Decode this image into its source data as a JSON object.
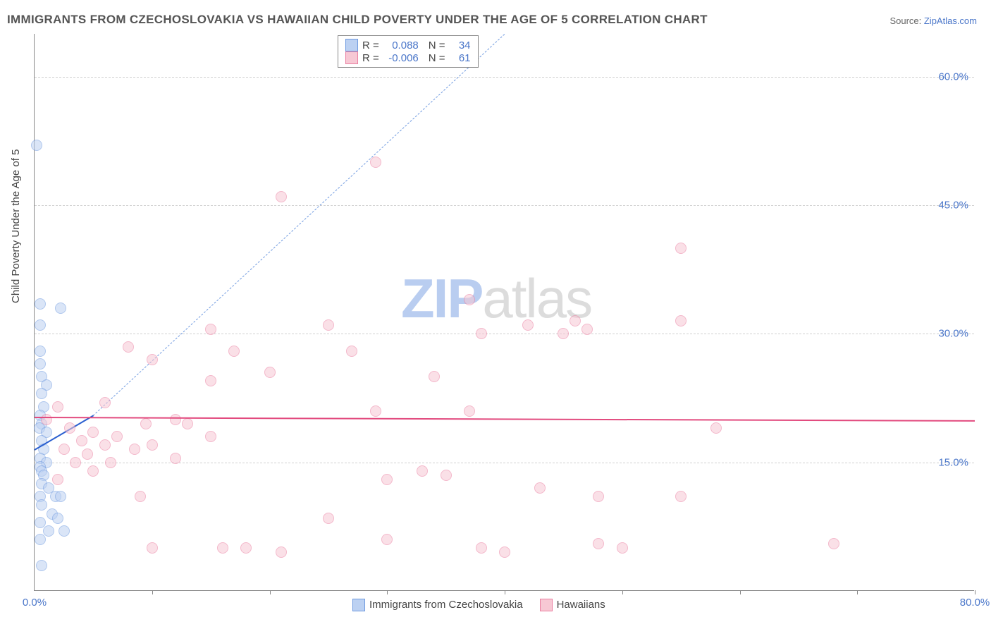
{
  "title": "IMMIGRANTS FROM CZECHOSLOVAKIA VS HAWAIIAN CHILD POVERTY UNDER THE AGE OF 5 CORRELATION CHART",
  "source_label": "Source: ",
  "source_link": "ZipAtlas.com",
  "ylabel": "Child Poverty Under the Age of 5",
  "chart": {
    "type": "scatter",
    "xlim": [
      0,
      80
    ],
    "ylim": [
      0,
      65
    ],
    "xticks": [
      0,
      10,
      20,
      30,
      40,
      50,
      60,
      70,
      80
    ],
    "xtick_labels_shown": {
      "0": "0.0%",
      "80": "80.0%"
    },
    "yticks": [
      15,
      30,
      45,
      60
    ],
    "ytick_labels": [
      "15.0%",
      "30.0%",
      "45.0%",
      "60.0%"
    ],
    "grid_color": "#d0d0d0",
    "axis_color": "#888888",
    "background_color": "#ffffff",
    "marker_radius": 8,
    "marker_stroke_width": 1.5,
    "series": [
      {
        "name": "Immigrants from Czechoslovakia",
        "fill": "#bcd1f2",
        "stroke": "#6f9ae0",
        "fill_opacity": 0.55,
        "R": "0.088",
        "N": "34",
        "trend": {
          "x1": 0,
          "y1": 16.5,
          "x2": 5,
          "y2": 20.5,
          "color": "#2a5fd0",
          "width": 2.5,
          "dash": false
        },
        "trend_ext": {
          "x1": 5,
          "y1": 20.5,
          "x2": 40,
          "y2": 65,
          "color": "#6f9ae0",
          "width": 1.2,
          "dash": true
        },
        "points": [
          [
            0.2,
            52
          ],
          [
            0.5,
            33.5
          ],
          [
            2.2,
            33
          ],
          [
            0.5,
            31
          ],
          [
            0.5,
            28
          ],
          [
            0.5,
            26.5
          ],
          [
            0.6,
            25
          ],
          [
            1.0,
            24
          ],
          [
            0.6,
            23
          ],
          [
            0.8,
            21.5
          ],
          [
            0.5,
            20.5
          ],
          [
            0.6,
            19.5
          ],
          [
            0.4,
            19
          ],
          [
            1.0,
            18.5
          ],
          [
            0.6,
            17.5
          ],
          [
            0.8,
            16.5
          ],
          [
            0.5,
            15.5
          ],
          [
            1.0,
            15
          ],
          [
            0.5,
            14.5
          ],
          [
            0.6,
            14
          ],
          [
            0.8,
            13.5
          ],
          [
            0.6,
            12.5
          ],
          [
            1.2,
            12
          ],
          [
            0.5,
            11
          ],
          [
            1.8,
            11
          ],
          [
            2.2,
            11
          ],
          [
            0.6,
            10
          ],
          [
            1.5,
            9
          ],
          [
            0.5,
            8
          ],
          [
            2.0,
            8.5
          ],
          [
            1.2,
            7
          ],
          [
            2.5,
            7
          ],
          [
            0.5,
            6
          ],
          [
            0.6,
            3
          ]
        ]
      },
      {
        "name": "Hawaiians",
        "fill": "#f7c8d4",
        "stroke": "#eb7fa1",
        "fill_opacity": 0.55,
        "R": "-0.006",
        "N": "61",
        "trend": {
          "x1": 0,
          "y1": 20.3,
          "x2": 80,
          "y2": 19.9,
          "color": "#e24a7e",
          "width": 2.5,
          "dash": false
        },
        "points": [
          [
            29,
            50
          ],
          [
            21,
            46
          ],
          [
            55,
            40
          ],
          [
            37,
            34
          ],
          [
            15,
            30.5
          ],
          [
            25,
            31
          ],
          [
            46,
            31.5
          ],
          [
            55,
            31.5
          ],
          [
            42,
            31
          ],
          [
            38,
            30
          ],
          [
            45,
            30
          ],
          [
            8,
            28.5
          ],
          [
            47,
            30.5
          ],
          [
            17,
            28
          ],
          [
            10,
            27
          ],
          [
            20,
            25.5
          ],
          [
            15,
            24.5
          ],
          [
            34,
            25
          ],
          [
            27,
            28
          ],
          [
            6,
            22
          ],
          [
            29,
            21
          ],
          [
            37,
            21
          ],
          [
            2,
            21.5
          ],
          [
            1,
            20
          ],
          [
            12,
            20
          ],
          [
            9.5,
            19.5
          ],
          [
            13,
            19.5
          ],
          [
            3,
            19
          ],
          [
            5,
            18.5
          ],
          [
            7,
            18
          ],
          [
            15,
            18
          ],
          [
            58,
            19
          ],
          [
            4,
            17.5
          ],
          [
            6,
            17
          ],
          [
            2.5,
            16.5
          ],
          [
            8.5,
            16.5
          ],
          [
            10,
            17
          ],
          [
            4.5,
            16
          ],
          [
            12,
            15.5
          ],
          [
            3.5,
            15
          ],
          [
            6.5,
            15
          ],
          [
            5,
            14
          ],
          [
            33,
            14
          ],
          [
            35,
            13.5
          ],
          [
            30,
            13
          ],
          [
            25,
            8.5
          ],
          [
            9,
            11
          ],
          [
            48,
            11
          ],
          [
            55,
            11
          ],
          [
            10,
            5
          ],
          [
            16,
            5
          ],
          [
            18,
            5
          ],
          [
            21,
            4.5
          ],
          [
            30,
            6
          ],
          [
            38,
            5
          ],
          [
            40,
            4.5
          ],
          [
            48,
            5.5
          ],
          [
            50,
            5
          ],
          [
            68,
            5.5
          ],
          [
            43,
            12
          ],
          [
            2,
            13
          ]
        ]
      }
    ]
  },
  "legend_top": {
    "r_label": "R =",
    "n_label": "N ="
  },
  "legend_bottom": {
    "items": [
      "Immigrants from Czechoslovakia",
      "Hawaiians"
    ]
  },
  "watermark": {
    "zip": "ZIP",
    "atlas": "atlas"
  }
}
